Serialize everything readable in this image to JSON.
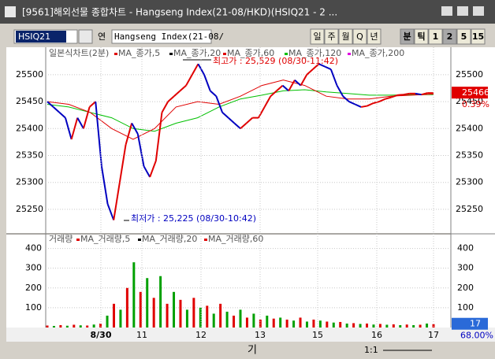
{
  "window": {
    "title": "[9561]해외선물 종합차트 - Hangseng Index(21-08/HKD)(HSIQ21 - 2 ..."
  },
  "toolbar": {
    "code": "HSIQ21",
    "search_suffix": "연",
    "name": "Hangseng Index(21-08/",
    "periods": [
      "일",
      "주",
      "월",
      "Q",
      "년"
    ],
    "intervals": [
      "분",
      "틱",
      "1",
      "2",
      "5",
      "15"
    ]
  },
  "price_chart": {
    "legend": [
      {
        "name": "일본식차트(2분)",
        "color": "#808080"
      },
      {
        "name": "MA_종가,5",
        "color": "#e00000"
      },
      {
        "name": "MA_종가,20",
        "color": "#000000"
      },
      {
        "name": "MA_종가,60",
        "color": "#e00000"
      },
      {
        "name": "MA_종가,120",
        "color": "#00c000"
      },
      {
        "name": "MA_종가,200",
        "color": "#e000e0"
      }
    ],
    "ylim": [
      25206,
      25551
    ],
    "yticks": [
      25250,
      25300,
      25350,
      25400,
      25450,
      25500
    ],
    "values": [
      25450,
      25440,
      25430,
      25420,
      25380,
      25420,
      25400,
      25440,
      25450,
      25330,
      25260,
      25230,
      25300,
      25370,
      25410,
      25390,
      25330,
      25310,
      25340,
      25430,
      25450,
      25460,
      25470,
      25480,
      25500,
      25520,
      25500,
      25470,
      25460,
      25430,
      25420,
      25410,
      25400,
      25410,
      25420,
      25420,
      25440,
      25460,
      25470,
      25480,
      25470,
      25490,
      25480,
      25500,
      25510,
      25520,
      25515,
      25510,
      25480,
      25460,
      25450,
      25445,
      25440,
      25442,
      25447,
      25450,
      25455,
      25458,
      25462,
      25463,
      25465,
      25465,
      25463,
      25466,
      25466
    ],
    "color": "#0000c0",
    "ma60": [
      25450,
      25445,
      25430,
      25400,
      25380,
      25400,
      25440,
      25450,
      25445,
      25460,
      25480,
      25490,
      25480,
      25460,
      25455,
      25455,
      25460,
      25462,
      25464
    ],
    "ma120": [
      25445,
      25440,
      25430,
      25420,
      25400,
      25395,
      25410,
      25420,
      25440,
      25455,
      25462,
      25470,
      25472,
      25468,
      25465,
      25462,
      25462,
      25463,
      25463
    ],
    "ma_colors": [
      "#e00000",
      "#00c000"
    ],
    "high_label": "최고가 : 25,529 (08/30-11:42)",
    "low_label": "최저가 : 25,225 (08/30-10:42)",
    "last_value": 25466,
    "change": "0.39%"
  },
  "volume_chart": {
    "legend": [
      {
        "name": "거래량",
        "color": "#808080"
      },
      {
        "name": "MA_거래량,5",
        "color": "#e00000"
      },
      {
        "name": "MA_거래량,20",
        "color": "#000000"
      },
      {
        "name": "MA_거래량,60",
        "color": "#e00000"
      }
    ],
    "ylim": [
      0,
      470
    ],
    "yticks": [
      100,
      200,
      300,
      400
    ],
    "values": [
      10,
      8,
      12,
      9,
      14,
      11,
      10,
      15,
      20,
      60,
      120,
      90,
      200,
      330,
      180,
      250,
      150,
      260,
      120,
      180,
      140,
      90,
      150,
      100,
      110,
      70,
      120,
      80,
      60,
      90,
      50,
      70,
      40,
      60,
      45,
      50,
      40,
      35,
      50,
      30,
      40,
      35,
      30,
      25,
      28,
      20,
      22,
      18,
      20,
      15,
      18,
      14,
      16,
      12,
      15,
      12,
      14,
      20,
      17
    ],
    "colors": [
      "#e00000",
      "#00a000"
    ],
    "last_value": 17,
    "percent": "68.00%"
  },
  "x_labels": [
    "8/30",
    "11",
    "12",
    "13",
    "15",
    "16",
    "17"
  ],
  "bottom_bar": {
    "left": "기",
    "ratio": "1:1"
  }
}
